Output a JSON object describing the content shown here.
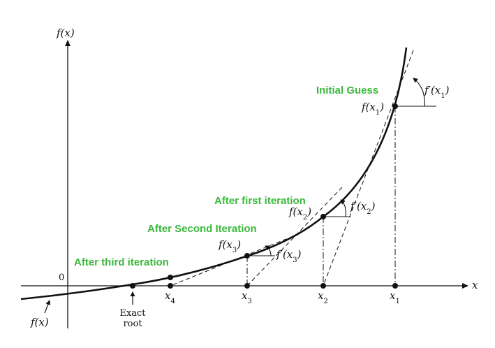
{
  "axes": {
    "y_label": "f(x)",
    "x_label": "x",
    "origin_label": "0",
    "curve_label": "f(x)"
  },
  "points": {
    "x1": "x1",
    "x2": "x2",
    "x3": "x3",
    "x4": "x4"
  },
  "exact_root": {
    "line1": "Exact",
    "line2": "root"
  },
  "function_values": {
    "f_x1": "f(x1)",
    "f_x2": "f(x2)",
    "f_x3": "f(x3)"
  },
  "derivatives": {
    "d_x1": "f′(x1)",
    "d_x2": "f′(x2)",
    "d_x3": "f′(x3)"
  },
  "annotations": {
    "initial_guess": "Initial Guess",
    "after_first": "After first iteration",
    "after_second": "After Second Iteration",
    "after_third": "After third iteration"
  },
  "colors": {
    "annotation": "#3cb83c",
    "ink": "#111111"
  }
}
